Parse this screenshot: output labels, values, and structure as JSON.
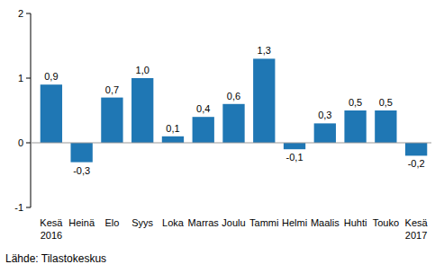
{
  "chart_data": {
    "type": "bar",
    "categories": [
      "Kesä 2016",
      "Heinä",
      "Elo",
      "Syys",
      "Loka",
      "Marras",
      "Joulu",
      "Tammi",
      "Helmi",
      "Maalis",
      "Huhti",
      "Touko",
      "Kesä 2017"
    ],
    "values": [
      0.9,
      -0.3,
      0.7,
      1.0,
      0.1,
      0.4,
      0.6,
      1.3,
      -0.1,
      0.3,
      0.5,
      0.5,
      -0.2
    ],
    "value_labels": [
      "0,9",
      "-0,3",
      "0,7",
      "1,0",
      "0,1",
      "0,4",
      "0,6",
      "1,3",
      "-0,1",
      "0,3",
      "0,5",
      "0,5",
      "-0,2"
    ],
    "data_labels": true,
    "color": "#1f77b4",
    "ylim": [
      -1,
      2
    ],
    "yticks": [
      -1,
      0,
      1,
      2
    ],
    "grid": false,
    "source": "Lähde: Tilastokeskus"
  }
}
